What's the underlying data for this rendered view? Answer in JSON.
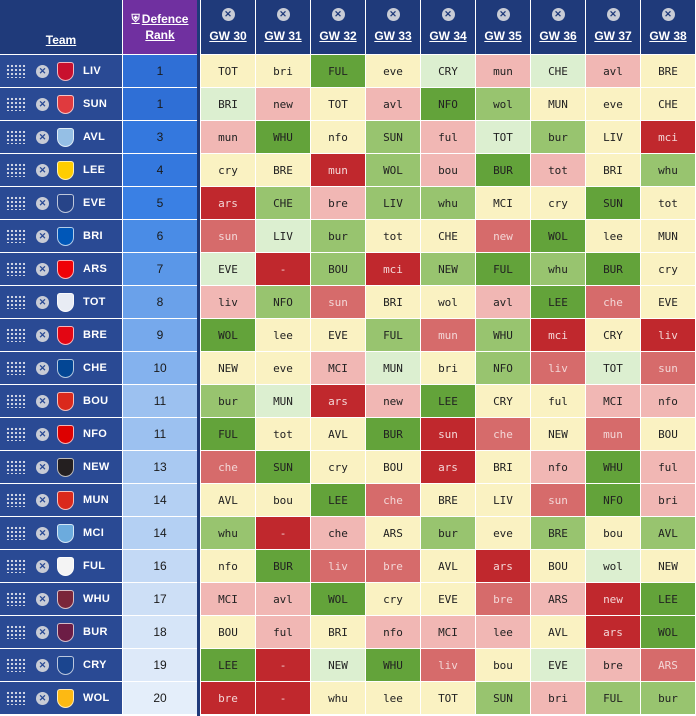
{
  "header": {
    "team_label": "Team",
    "rank_label_line1": "Defence",
    "rank_label_line2": "Rank",
    "gameweeks": [
      "GW 30",
      "GW 31",
      "GW 32",
      "GW 33",
      "GW 34",
      "GW 35",
      "GW 36",
      "GW 37",
      "GW 38"
    ]
  },
  "colors": {
    "1": "#63a33a",
    "2": "#98c46f",
    "3": "#dcefd0",
    "4": "#faf2c2",
    "5": "#f1b7b4",
    "6": "#d66b6b",
    "7": "#c0282d",
    "na": "#c0282d"
  },
  "teams": [
    {
      "abbr": "LIV",
      "icon": "liverbird-crest-icon",
      "badge_color": "#c8102e",
      "rank": "1",
      "rank_color": "#2f6fd6",
      "fixtures": [
        {
          "t": "TOT",
          "d": 4
        },
        {
          "t": "bri",
          "d": 4
        },
        {
          "t": "FUL",
          "d": 1
        },
        {
          "t": "eve",
          "d": 4
        },
        {
          "t": "CRY",
          "d": 3
        },
        {
          "t": "mun",
          "d": 5
        },
        {
          "t": "CHE",
          "d": 3
        },
        {
          "t": "avl",
          "d": 5
        },
        {
          "t": "BRE",
          "d": 4
        }
      ]
    },
    {
      "abbr": "SUN",
      "icon": "sunderland-crest-icon",
      "badge_color": "#e03a3e",
      "rank": "1",
      "rank_color": "#2f6fd6",
      "fixtures": [
        {
          "t": "BRI",
          "d": 3
        },
        {
          "t": "new",
          "d": 5
        },
        {
          "t": "TOT",
          "d": 4
        },
        {
          "t": "avl",
          "d": 5
        },
        {
          "t": "NFO",
          "d": 1
        },
        {
          "t": "wol",
          "d": 2
        },
        {
          "t": "MUN",
          "d": 4
        },
        {
          "t": "eve",
          "d": 4
        },
        {
          "t": "CHE",
          "d": 4
        }
      ]
    },
    {
      "abbr": "AVL",
      "icon": "villa-lion-crest-icon",
      "badge_color": "#95bfe5",
      "rank": "3",
      "rank_color": "#3478de",
      "fixtures": [
        {
          "t": "mun",
          "d": 5
        },
        {
          "t": "WHU",
          "d": 1
        },
        {
          "t": "nfo",
          "d": 4
        },
        {
          "t": "SUN",
          "d": 2
        },
        {
          "t": "ful",
          "d": 5
        },
        {
          "t": "TOT",
          "d": 3
        },
        {
          "t": "bur",
          "d": 2
        },
        {
          "t": "LIV",
          "d": 4
        },
        {
          "t": "mci",
          "d": 7
        }
      ]
    },
    {
      "abbr": "LEE",
      "icon": "leeds-crest-icon",
      "badge_color": "#ffcd00",
      "rank": "4",
      "rank_color": "#3478de",
      "fixtures": [
        {
          "t": "cry",
          "d": 4
        },
        {
          "t": "BRE",
          "d": 4
        },
        {
          "t": "mun",
          "d": 7
        },
        {
          "t": "WOL",
          "d": 2
        },
        {
          "t": "bou",
          "d": 5
        },
        {
          "t": "BUR",
          "d": 1
        },
        {
          "t": "tot",
          "d": 5
        },
        {
          "t": "BRI",
          "d": 4
        },
        {
          "t": "whu",
          "d": 2
        }
      ]
    },
    {
      "abbr": "EVE",
      "icon": "everton-crest-icon",
      "badge_color": "#274488",
      "rank": "5",
      "rank_color": "#3a80e4",
      "fixtures": [
        {
          "t": "ars",
          "d": 7
        },
        {
          "t": "CHE",
          "d": 2
        },
        {
          "t": "bre",
          "d": 5
        },
        {
          "t": "LIV",
          "d": 2
        },
        {
          "t": "whu",
          "d": 2
        },
        {
          "t": "MCI",
          "d": 4
        },
        {
          "t": "cry",
          "d": 4
        },
        {
          "t": "SUN",
          "d": 1
        },
        {
          "t": "tot",
          "d": 4
        }
      ]
    },
    {
      "abbr": "BRI",
      "icon": "brighton-crest-icon",
      "badge_color": "#0057b8",
      "rank": "6",
      "rank_color": "#4a8ce6",
      "fixtures": [
        {
          "t": "sun",
          "d": 6
        },
        {
          "t": "LIV",
          "d": 3
        },
        {
          "t": "bur",
          "d": 2
        },
        {
          "t": "tot",
          "d": 4
        },
        {
          "t": "CHE",
          "d": 4
        },
        {
          "t": "new",
          "d": 6
        },
        {
          "t": "WOL",
          "d": 1
        },
        {
          "t": "lee",
          "d": 4
        },
        {
          "t": "MUN",
          "d": 4
        }
      ]
    },
    {
      "abbr": "ARS",
      "icon": "arsenal-cannon-crest-icon",
      "badge_color": "#ef0107",
      "rank": "7",
      "rank_color": "#5a97e8",
      "fixtures": [
        {
          "t": "EVE",
          "d": 3
        },
        {
          "t": "-",
          "d": "na"
        },
        {
          "t": "BOU",
          "d": 2
        },
        {
          "t": "mci",
          "d": 7
        },
        {
          "t": "NEW",
          "d": 2
        },
        {
          "t": "FUL",
          "d": 1
        },
        {
          "t": "whu",
          "d": 2
        },
        {
          "t": "BUR",
          "d": 1
        },
        {
          "t": "cry",
          "d": 4
        }
      ]
    },
    {
      "abbr": "TOT",
      "icon": "spurs-cockerel-crest-icon",
      "badge_color": "#e8ecf4",
      "rank": "8",
      "rank_color": "#6aa1ea",
      "fixtures": [
        {
          "t": "liv",
          "d": 5
        },
        {
          "t": "NFO",
          "d": 2
        },
        {
          "t": "sun",
          "d": 6
        },
        {
          "t": "BRI",
          "d": 4
        },
        {
          "t": "wol",
          "d": 4
        },
        {
          "t": "avl",
          "d": 5
        },
        {
          "t": "LEE",
          "d": 1
        },
        {
          "t": "che",
          "d": 6
        },
        {
          "t": "EVE",
          "d": 4
        }
      ]
    },
    {
      "abbr": "BRE",
      "icon": "brentford-bee-crest-icon",
      "badge_color": "#e30613",
      "rank": "9",
      "rank_color": "#76a9ec",
      "fixtures": [
        {
          "t": "WOL",
          "d": 1
        },
        {
          "t": "lee",
          "d": 4
        },
        {
          "t": "EVE",
          "d": 4
        },
        {
          "t": "FUL",
          "d": 2
        },
        {
          "t": "mun",
          "d": 6
        },
        {
          "t": "WHU",
          "d": 2
        },
        {
          "t": "mci",
          "d": 7
        },
        {
          "t": "CRY",
          "d": 4
        },
        {
          "t": "liv",
          "d": 7
        }
      ]
    },
    {
      "abbr": "CHE",
      "icon": "chelsea-lion-crest-icon",
      "badge_color": "#034694",
      "rank": "10",
      "rank_color": "#84b2ee",
      "fixtures": [
        {
          "t": "NEW",
          "d": 4
        },
        {
          "t": "eve",
          "d": 4
        },
        {
          "t": "MCI",
          "d": 5
        },
        {
          "t": "MUN",
          "d": 3
        },
        {
          "t": "bri",
          "d": 4
        },
        {
          "t": "NFO",
          "d": 2
        },
        {
          "t": "liv",
          "d": 6
        },
        {
          "t": "TOT",
          "d": 3
        },
        {
          "t": "sun",
          "d": 6
        }
      ]
    },
    {
      "abbr": "BOU",
      "icon": "bournemouth-crest-icon",
      "badge_color": "#da291c",
      "rank": "11",
      "rank_color": "#9cc1f0",
      "fixtures": [
        {
          "t": "bur",
          "d": 2
        },
        {
          "t": "MUN",
          "d": 3
        },
        {
          "t": "ars",
          "d": 7
        },
        {
          "t": "new",
          "d": 5
        },
        {
          "t": "LEE",
          "d": 1
        },
        {
          "t": "CRY",
          "d": 4
        },
        {
          "t": "ful",
          "d": 4
        },
        {
          "t": "MCI",
          "d": 5
        },
        {
          "t": "nfo",
          "d": 5
        }
      ]
    },
    {
      "abbr": "NFO",
      "icon": "forest-tree-crest-icon",
      "badge_color": "#dd0000",
      "rank": "11",
      "rank_color": "#9cc1f0",
      "fixtures": [
        {
          "t": "FUL",
          "d": 1
        },
        {
          "t": "tot",
          "d": 4
        },
        {
          "t": "AVL",
          "d": 4
        },
        {
          "t": "BUR",
          "d": 1
        },
        {
          "t": "sun",
          "d": 7
        },
        {
          "t": "che",
          "d": 6
        },
        {
          "t": "NEW",
          "d": 4
        },
        {
          "t": "mun",
          "d": 6
        },
        {
          "t": "BOU",
          "d": 4
        }
      ]
    },
    {
      "abbr": "NEW",
      "icon": "newcastle-magpie-crest-icon",
      "badge_color": "#241f20",
      "rank": "13",
      "rank_color": "#a9c9f2",
      "fixtures": [
        {
          "t": "che",
          "d": 6
        },
        {
          "t": "SUN",
          "d": 1
        },
        {
          "t": "cry",
          "d": 4
        },
        {
          "t": "BOU",
          "d": 4
        },
        {
          "t": "ars",
          "d": 7
        },
        {
          "t": "BRI",
          "d": 4
        },
        {
          "t": "nfo",
          "d": 5
        },
        {
          "t": "WHU",
          "d": 1
        },
        {
          "t": "ful",
          "d": 5
        }
      ]
    },
    {
      "abbr": "MUN",
      "icon": "united-devil-crest-icon",
      "badge_color": "#da291c",
      "rank": "14",
      "rank_color": "#b4d0f3",
      "fixtures": [
        {
          "t": "AVL",
          "d": 4
        },
        {
          "t": "bou",
          "d": 4
        },
        {
          "t": "LEE",
          "d": 1
        },
        {
          "t": "che",
          "d": 6
        },
        {
          "t": "BRE",
          "d": 4
        },
        {
          "t": "LIV",
          "d": 4
        },
        {
          "t": "sun",
          "d": 6
        },
        {
          "t": "NFO",
          "d": 1
        },
        {
          "t": "bri",
          "d": 5
        }
      ]
    },
    {
      "abbr": "MCI",
      "icon": "city-eagle-crest-icon",
      "badge_color": "#6cabdd",
      "rank": "14",
      "rank_color": "#b4d0f3",
      "fixtures": [
        {
          "t": "whu",
          "d": 2
        },
        {
          "t": "-",
          "d": "na"
        },
        {
          "t": "che",
          "d": 5
        },
        {
          "t": "ARS",
          "d": 4
        },
        {
          "t": "bur",
          "d": 2
        },
        {
          "t": "eve",
          "d": 4
        },
        {
          "t": "BRE",
          "d": 2
        },
        {
          "t": "bou",
          "d": 4
        },
        {
          "t": "AVL",
          "d": 2
        }
      ]
    },
    {
      "abbr": "FUL",
      "icon": "fulham-crest-icon",
      "badge_color": "#f4f4f4",
      "rank": "16",
      "rank_color": "#c3d9f5",
      "fixtures": [
        {
          "t": "nfo",
          "d": 4
        },
        {
          "t": "BUR",
          "d": 1
        },
        {
          "t": "liv",
          "d": 6
        },
        {
          "t": "bre",
          "d": 6
        },
        {
          "t": "AVL",
          "d": 4
        },
        {
          "t": "ars",
          "d": 7
        },
        {
          "t": "BOU",
          "d": 4
        },
        {
          "t": "wol",
          "d": 3
        },
        {
          "t": "NEW",
          "d": 4
        }
      ]
    },
    {
      "abbr": "WHU",
      "icon": "hammers-crest-icon",
      "badge_color": "#7a263a",
      "rank": "17",
      "rank_color": "#cddff6",
      "fixtures": [
        {
          "t": "MCI",
          "d": 5
        },
        {
          "t": "avl",
          "d": 5
        },
        {
          "t": "WOL",
          "d": 1
        },
        {
          "t": "cry",
          "d": 4
        },
        {
          "t": "EVE",
          "d": 4
        },
        {
          "t": "bre",
          "d": 6
        },
        {
          "t": "ARS",
          "d": 5
        },
        {
          "t": "new",
          "d": 7
        },
        {
          "t": "LEE",
          "d": 1
        }
      ]
    },
    {
      "abbr": "BUR",
      "icon": "burnley-crest-icon",
      "badge_color": "#6c1d45",
      "rank": "18",
      "rank_color": "#d6e5f8",
      "fixtures": [
        {
          "t": "BOU",
          "d": 4
        },
        {
          "t": "ful",
          "d": 5
        },
        {
          "t": "BRI",
          "d": 4
        },
        {
          "t": "nfo",
          "d": 5
        },
        {
          "t": "MCI",
          "d": 5
        },
        {
          "t": "lee",
          "d": 5
        },
        {
          "t": "AVL",
          "d": 4
        },
        {
          "t": "ars",
          "d": 7
        },
        {
          "t": "WOL",
          "d": 1
        }
      ]
    },
    {
      "abbr": "CRY",
      "icon": "palace-eagle-crest-icon",
      "badge_color": "#1b458f",
      "rank": "19",
      "rank_color": "#dde9f9",
      "fixtures": [
        {
          "t": "LEE",
          "d": 1
        },
        {
          "t": "-",
          "d": "na"
        },
        {
          "t": "NEW",
          "d": 3
        },
        {
          "t": "WHU",
          "d": 1
        },
        {
          "t": "liv",
          "d": 6
        },
        {
          "t": "bou",
          "d": 4
        },
        {
          "t": "EVE",
          "d": 3
        },
        {
          "t": "bre",
          "d": 5
        },
        {
          "t": "ARS",
          "d": 6
        }
      ]
    },
    {
      "abbr": "WOL",
      "icon": "wolves-crest-icon",
      "badge_color": "#fdb913",
      "rank": "20",
      "rank_color": "#e4eefa",
      "fixtures": [
        {
          "t": "bre",
          "d": 7
        },
        {
          "t": "-",
          "d": "na"
        },
        {
          "t": "whu",
          "d": 4
        },
        {
          "t": "lee",
          "d": 4
        },
        {
          "t": "TOT",
          "d": 4
        },
        {
          "t": "SUN",
          "d": 2
        },
        {
          "t": "bri",
          "d": 5
        },
        {
          "t": "FUL",
          "d": 2
        },
        {
          "t": "bur",
          "d": 2
        }
      ]
    }
  ]
}
